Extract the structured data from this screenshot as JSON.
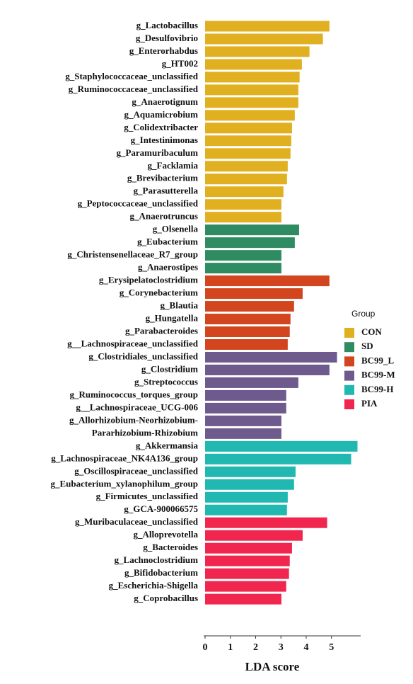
{
  "chart_data": {
    "type": "bar",
    "orientation": "horizontal",
    "categories": [
      "g_Lactobacillus",
      "g_Desulfovibrio",
      "g_Enterorhabdus",
      "g_HT002",
      "g_Staphylococcaceae_unclassified",
      "g_Ruminococcaceae_unclassified",
      "g_Anaerotignum",
      "g_Aquamicrobium",
      "g_Colidextribacter",
      "g_Intestinimonas",
      "g_Paramuribaculum",
      "g_Facklamia",
      "g_Brevibacterium",
      "g_Parasutterella",
      "g_Peptococcaceae_unclassified",
      "g_Anaerotruncus",
      "g_Olsenella",
      "g_Eubacterium",
      "g_Christensenellaceae_R7_group",
      "g_Anaerostipes",
      "g_Erysipelatoclostridium",
      "g_Corynebacterium",
      "g_Blautia",
      "g_Hungatella",
      "g_Parabacteroides",
      "g__Lachnospiraceae_unclassified",
      "g_Clostridiales_unclassified",
      "g_Clostridium",
      "g_Streptococcus",
      "g_Ruminococcus_torques_group",
      "g__Lachnospiraceae_UCG-006",
      "g_Allorhizobium-Neorhizobium-",
      "Pararhizobium-Rhizobium",
      "g_Akkermansia",
      "g_Lachnospiraceae_NK4A136_group",
      "g_Oscillospiraceae_unclassified",
      "g_Eubacterium_xylanophilum_group",
      "g_Firmicutes_unclassified",
      "g_GCA-900066575",
      "g_Muribaculaceae_unclassified",
      "g_Alloprevotella",
      "g_Bacteroides",
      "g_Lachnoclostridium",
      "g_Bifidobacterium",
      "g_Escherichia-Shigella",
      "g_Coprobacillus"
    ],
    "series": [
      {
        "name": "CON",
        "color": "#e0b020",
        "values": [
          4.92,
          4.66,
          4.13,
          3.83,
          3.74,
          3.69,
          3.69,
          3.55,
          3.44,
          3.41,
          3.38,
          3.27,
          3.24,
          3.1,
          3.02,
          3.02,
          null,
          null,
          null,
          null,
          null,
          null,
          null,
          null,
          null,
          null,
          null,
          null,
          null,
          null,
          null,
          null,
          null,
          null,
          null,
          null,
          null,
          null,
          null,
          null,
          null,
          null,
          null,
          null,
          null,
          null
        ]
      },
      {
        "name": "SD",
        "color": "#2e8b62",
        "values": [
          null,
          null,
          null,
          null,
          null,
          null,
          null,
          null,
          null,
          null,
          null,
          null,
          null,
          null,
          null,
          null,
          3.72,
          3.55,
          3.02,
          3.02,
          null,
          null,
          null,
          null,
          null,
          null,
          null,
          null,
          null,
          null,
          null,
          null,
          null,
          null,
          null,
          null,
          null,
          null,
          null,
          null,
          null,
          null,
          null,
          null,
          null,
          null
        ]
      },
      {
        "name": "BC99_L",
        "color": "#d2451e",
        "values": [
          null,
          null,
          null,
          null,
          null,
          null,
          null,
          null,
          null,
          null,
          null,
          null,
          null,
          null,
          null,
          null,
          null,
          null,
          null,
          null,
          4.92,
          3.86,
          3.52,
          3.38,
          3.35,
          3.27,
          null,
          null,
          null,
          null,
          null,
          null,
          null,
          null,
          null,
          null,
          null,
          null,
          null,
          null,
          null,
          null,
          null,
          null,
          null,
          null
        ]
      },
      {
        "name": "BC99-M",
        "color": "#6e5a8c",
        "values": [
          null,
          null,
          null,
          null,
          null,
          null,
          null,
          null,
          null,
          null,
          null,
          null,
          null,
          null,
          null,
          null,
          null,
          null,
          null,
          null,
          null,
          null,
          null,
          null,
          null,
          null,
          5.22,
          4.92,
          3.69,
          3.21,
          3.21,
          3.02,
          3.02,
          null,
          null,
          null,
          null,
          null,
          null,
          null,
          null,
          null,
          null,
          null,
          null,
          null
        ]
      },
      {
        "name": "BC99-H",
        "color": "#20b8b0",
        "values": [
          null,
          null,
          null,
          null,
          null,
          null,
          null,
          null,
          null,
          null,
          null,
          null,
          null,
          null,
          null,
          null,
          null,
          null,
          null,
          null,
          null,
          null,
          null,
          null,
          null,
          null,
          null,
          null,
          null,
          null,
          null,
          null,
          null,
          6.03,
          5.78,
          3.58,
          3.52,
          3.27,
          3.24,
          null,
          null,
          null,
          null,
          null,
          null,
          null
        ]
      },
      {
        "name": "PIA",
        "color": "#f0264e",
        "values": [
          null,
          null,
          null,
          null,
          null,
          null,
          null,
          null,
          null,
          null,
          null,
          null,
          null,
          null,
          null,
          null,
          null,
          null,
          null,
          null,
          null,
          null,
          null,
          null,
          null,
          null,
          null,
          null,
          null,
          null,
          null,
          null,
          null,
          null,
          null,
          null,
          null,
          null,
          null,
          4.83,
          3.86,
          3.44,
          3.35,
          3.32,
          3.21,
          3.02
        ]
      }
    ],
    "x_label": "LDA score",
    "legend_title": "Group",
    "legend": "right",
    "xlim": [
      0,
      6.1
    ],
    "xticks": [
      0,
      1,
      2,
      3,
      4,
      5
    ]
  }
}
